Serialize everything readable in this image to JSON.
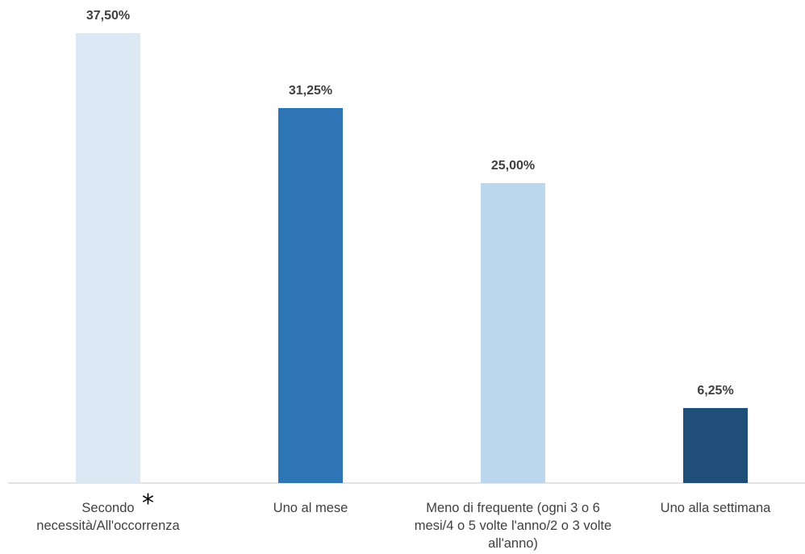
{
  "chart_data": {
    "type": "bar",
    "categories": [
      "Secondo necessità/All'occorrenza",
      "Uno al mese",
      "Meno di frequente (ogni 3 o 6 mesi/4 o 5 volte l'anno/2 o 3 volte all'anno)",
      "Uno alla settimana"
    ],
    "values": [
      37.5,
      31.25,
      25.0,
      6.25
    ],
    "data_labels": [
      "37,50%",
      "31,25%",
      "25,00%",
      "6,25%"
    ],
    "bar_colors": [
      "#dce9f5",
      "#2e75b6",
      "#bdd7ee",
      "#1f4e79"
    ],
    "ylim": [
      0,
      37.5
    ],
    "grid": false,
    "legend": "none",
    "annotation": "*",
    "title": "",
    "xlabel": "",
    "ylabel": ""
  }
}
